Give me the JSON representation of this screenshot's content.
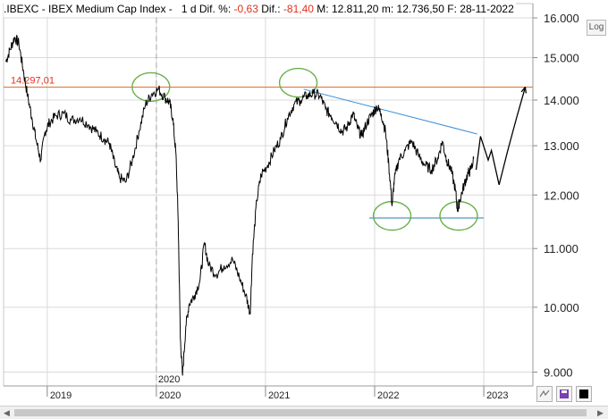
{
  "header": {
    "symbol": ".IBEXC",
    "name": "IBEX Medium Cap Index",
    "period": "1 d",
    "dif_pct_label": "Dif. %:",
    "dif_pct_value": "-0,63",
    "dif_label": "Dif.:",
    "dif_value": "-81,40",
    "max_label": "M:",
    "max_value": "12.811,20",
    "min_label": "m:",
    "min_value": "12.736,50",
    "date_label": "F:",
    "date_value": "28-11-2022"
  },
  "controls": {
    "log_label": "Log",
    "bottom_icons": [
      "scale-icon",
      "save-icon",
      "color-box-icon"
    ]
  },
  "chart_data": {
    "type": "line",
    "title": "",
    "xlabel": "",
    "ylabel": "",
    "scale": "log",
    "ylim": [
      8800,
      16000
    ],
    "y_ticks": [
      "9.000",
      "10.000",
      "11.000",
      "12.000",
      "13.000",
      "14.000",
      "15.000",
      "16.000"
    ],
    "y_tick_values": [
      9000,
      10000,
      11000,
      12000,
      13000,
      14000,
      15000,
      16000
    ],
    "x_ticks": [
      "2019",
      "2020",
      "2021",
      "2022",
      "2023"
    ],
    "x_tick_values": [
      2019.0,
      2020.0,
      2021.0,
      2022.0,
      2023.0
    ],
    "xlim": [
      2018.6,
      2023.45
    ],
    "grid": true,
    "vertical_marker": {
      "label": "2020",
      "x": 2020.0
    },
    "series": [
      {
        "values": [
          [
            2018.62,
            14900
          ],
          [
            2018.66,
            15200
          ],
          [
            2018.7,
            15500
          ],
          [
            2018.74,
            15350
          ],
          [
            2018.78,
            14700
          ],
          [
            2018.82,
            14100
          ],
          [
            2018.86,
            13600
          ],
          [
            2018.9,
            13100
          ],
          [
            2018.94,
            12700
          ],
          [
            2018.98,
            13300
          ],
          [
            2019.02,
            13500
          ],
          [
            2019.08,
            13650
          ],
          [
            2019.15,
            13700
          ],
          [
            2019.22,
            13550
          ],
          [
            2019.3,
            13600
          ],
          [
            2019.38,
            13450
          ],
          [
            2019.45,
            13300
          ],
          [
            2019.52,
            13150
          ],
          [
            2019.57,
            13050
          ],
          [
            2019.62,
            12600
          ],
          [
            2019.66,
            12350
          ],
          [
            2019.72,
            12250
          ],
          [
            2019.78,
            12700
          ],
          [
            2019.84,
            13300
          ],
          [
            2019.9,
            13900
          ],
          [
            2019.96,
            14150
          ],
          [
            2020.02,
            14250
          ],
          [
            2020.08,
            14050
          ],
          [
            2020.12,
            13950
          ],
          [
            2020.15,
            13600
          ],
          [
            2020.18,
            12800
          ],
          [
            2020.2,
            11500
          ],
          [
            2020.22,
            9500
          ],
          [
            2020.24,
            8950
          ],
          [
            2020.27,
            9700
          ],
          [
            2020.3,
            10050
          ],
          [
            2020.35,
            10200
          ],
          [
            2020.4,
            10450
          ],
          [
            2020.44,
            11100
          ],
          [
            2020.48,
            10700
          ],
          [
            2020.55,
            10550
          ],
          [
            2020.62,
            10700
          ],
          [
            2020.7,
            10800
          ],
          [
            2020.76,
            10500
          ],
          [
            2020.82,
            10200
          ],
          [
            2020.86,
            9900
          ],
          [
            2020.88,
            10900
          ],
          [
            2020.92,
            11900
          ],
          [
            2020.96,
            12400
          ],
          [
            2021.02,
            12600
          ],
          [
            2021.08,
            12900
          ],
          [
            2021.14,
            13150
          ],
          [
            2021.2,
            13600
          ],
          [
            2021.26,
            13900
          ],
          [
            2021.32,
            14000
          ],
          [
            2021.38,
            14100
          ],
          [
            2021.44,
            14150
          ],
          [
            2021.5,
            14100
          ],
          [
            2021.55,
            13800
          ],
          [
            2021.6,
            13650
          ],
          [
            2021.65,
            13500
          ],
          [
            2021.7,
            13300
          ],
          [
            2021.75,
            13400
          ],
          [
            2021.8,
            13700
          ],
          [
            2021.84,
            13400
          ],
          [
            2021.88,
            13200
          ],
          [
            2021.93,
            13500
          ],
          [
            2021.98,
            13700
          ],
          [
            2022.02,
            13850
          ],
          [
            2022.06,
            13700
          ],
          [
            2022.1,
            13300
          ],
          [
            2022.13,
            12600
          ],
          [
            2022.16,
            11800
          ],
          [
            2022.18,
            12300
          ],
          [
            2022.22,
            12700
          ],
          [
            2022.28,
            12900
          ],
          [
            2022.34,
            13100
          ],
          [
            2022.4,
            12800
          ],
          [
            2022.46,
            12600
          ],
          [
            2022.52,
            12500
          ],
          [
            2022.58,
            12750
          ],
          [
            2022.62,
            13100
          ],
          [
            2022.66,
            12700
          ],
          [
            2022.7,
            12500
          ],
          [
            2022.74,
            12100
          ],
          [
            2022.76,
            11700
          ],
          [
            2022.78,
            11900
          ],
          [
            2022.82,
            12200
          ],
          [
            2022.85,
            12400
          ],
          [
            2022.88,
            12500
          ],
          [
            2022.91,
            12736
          ]
        ]
      }
    ],
    "projection": {
      "values": [
        [
          2022.93,
          12500
        ],
        [
          2022.97,
          13200
        ],
        [
          2023.04,
          12700
        ],
        [
          2023.07,
          12900
        ],
        [
          2023.14,
          12200
        ],
        [
          2023.22,
          12900
        ],
        [
          2023.3,
          13600
        ],
        [
          2023.38,
          14300
        ]
      ]
    },
    "resistance_line": {
      "label": "14.297,01",
      "value": 14297.01,
      "color": "#e07030"
    },
    "trend_line": {
      "from": [
        2021.35,
        14250
      ],
      "to": [
        2022.94,
        13250
      ],
      "color": "#3a8fd8"
    },
    "support_line": {
      "from": [
        2021.95,
        11560
      ],
      "to": [
        2023.0,
        11560
      ],
      "color": "#2a7fa8"
    },
    "circles": [
      {
        "x": 2019.95,
        "y": 14300
      },
      {
        "x": 2021.3,
        "y": 14400
      },
      {
        "x": 2022.16,
        "y": 11600
      },
      {
        "x": 2022.77,
        "y": 11600
      }
    ],
    "colors": {
      "price": "#000000",
      "grid": "#d9d9d9",
      "circle": "#6ab04c",
      "resistance_label": "#e0301e"
    }
  }
}
